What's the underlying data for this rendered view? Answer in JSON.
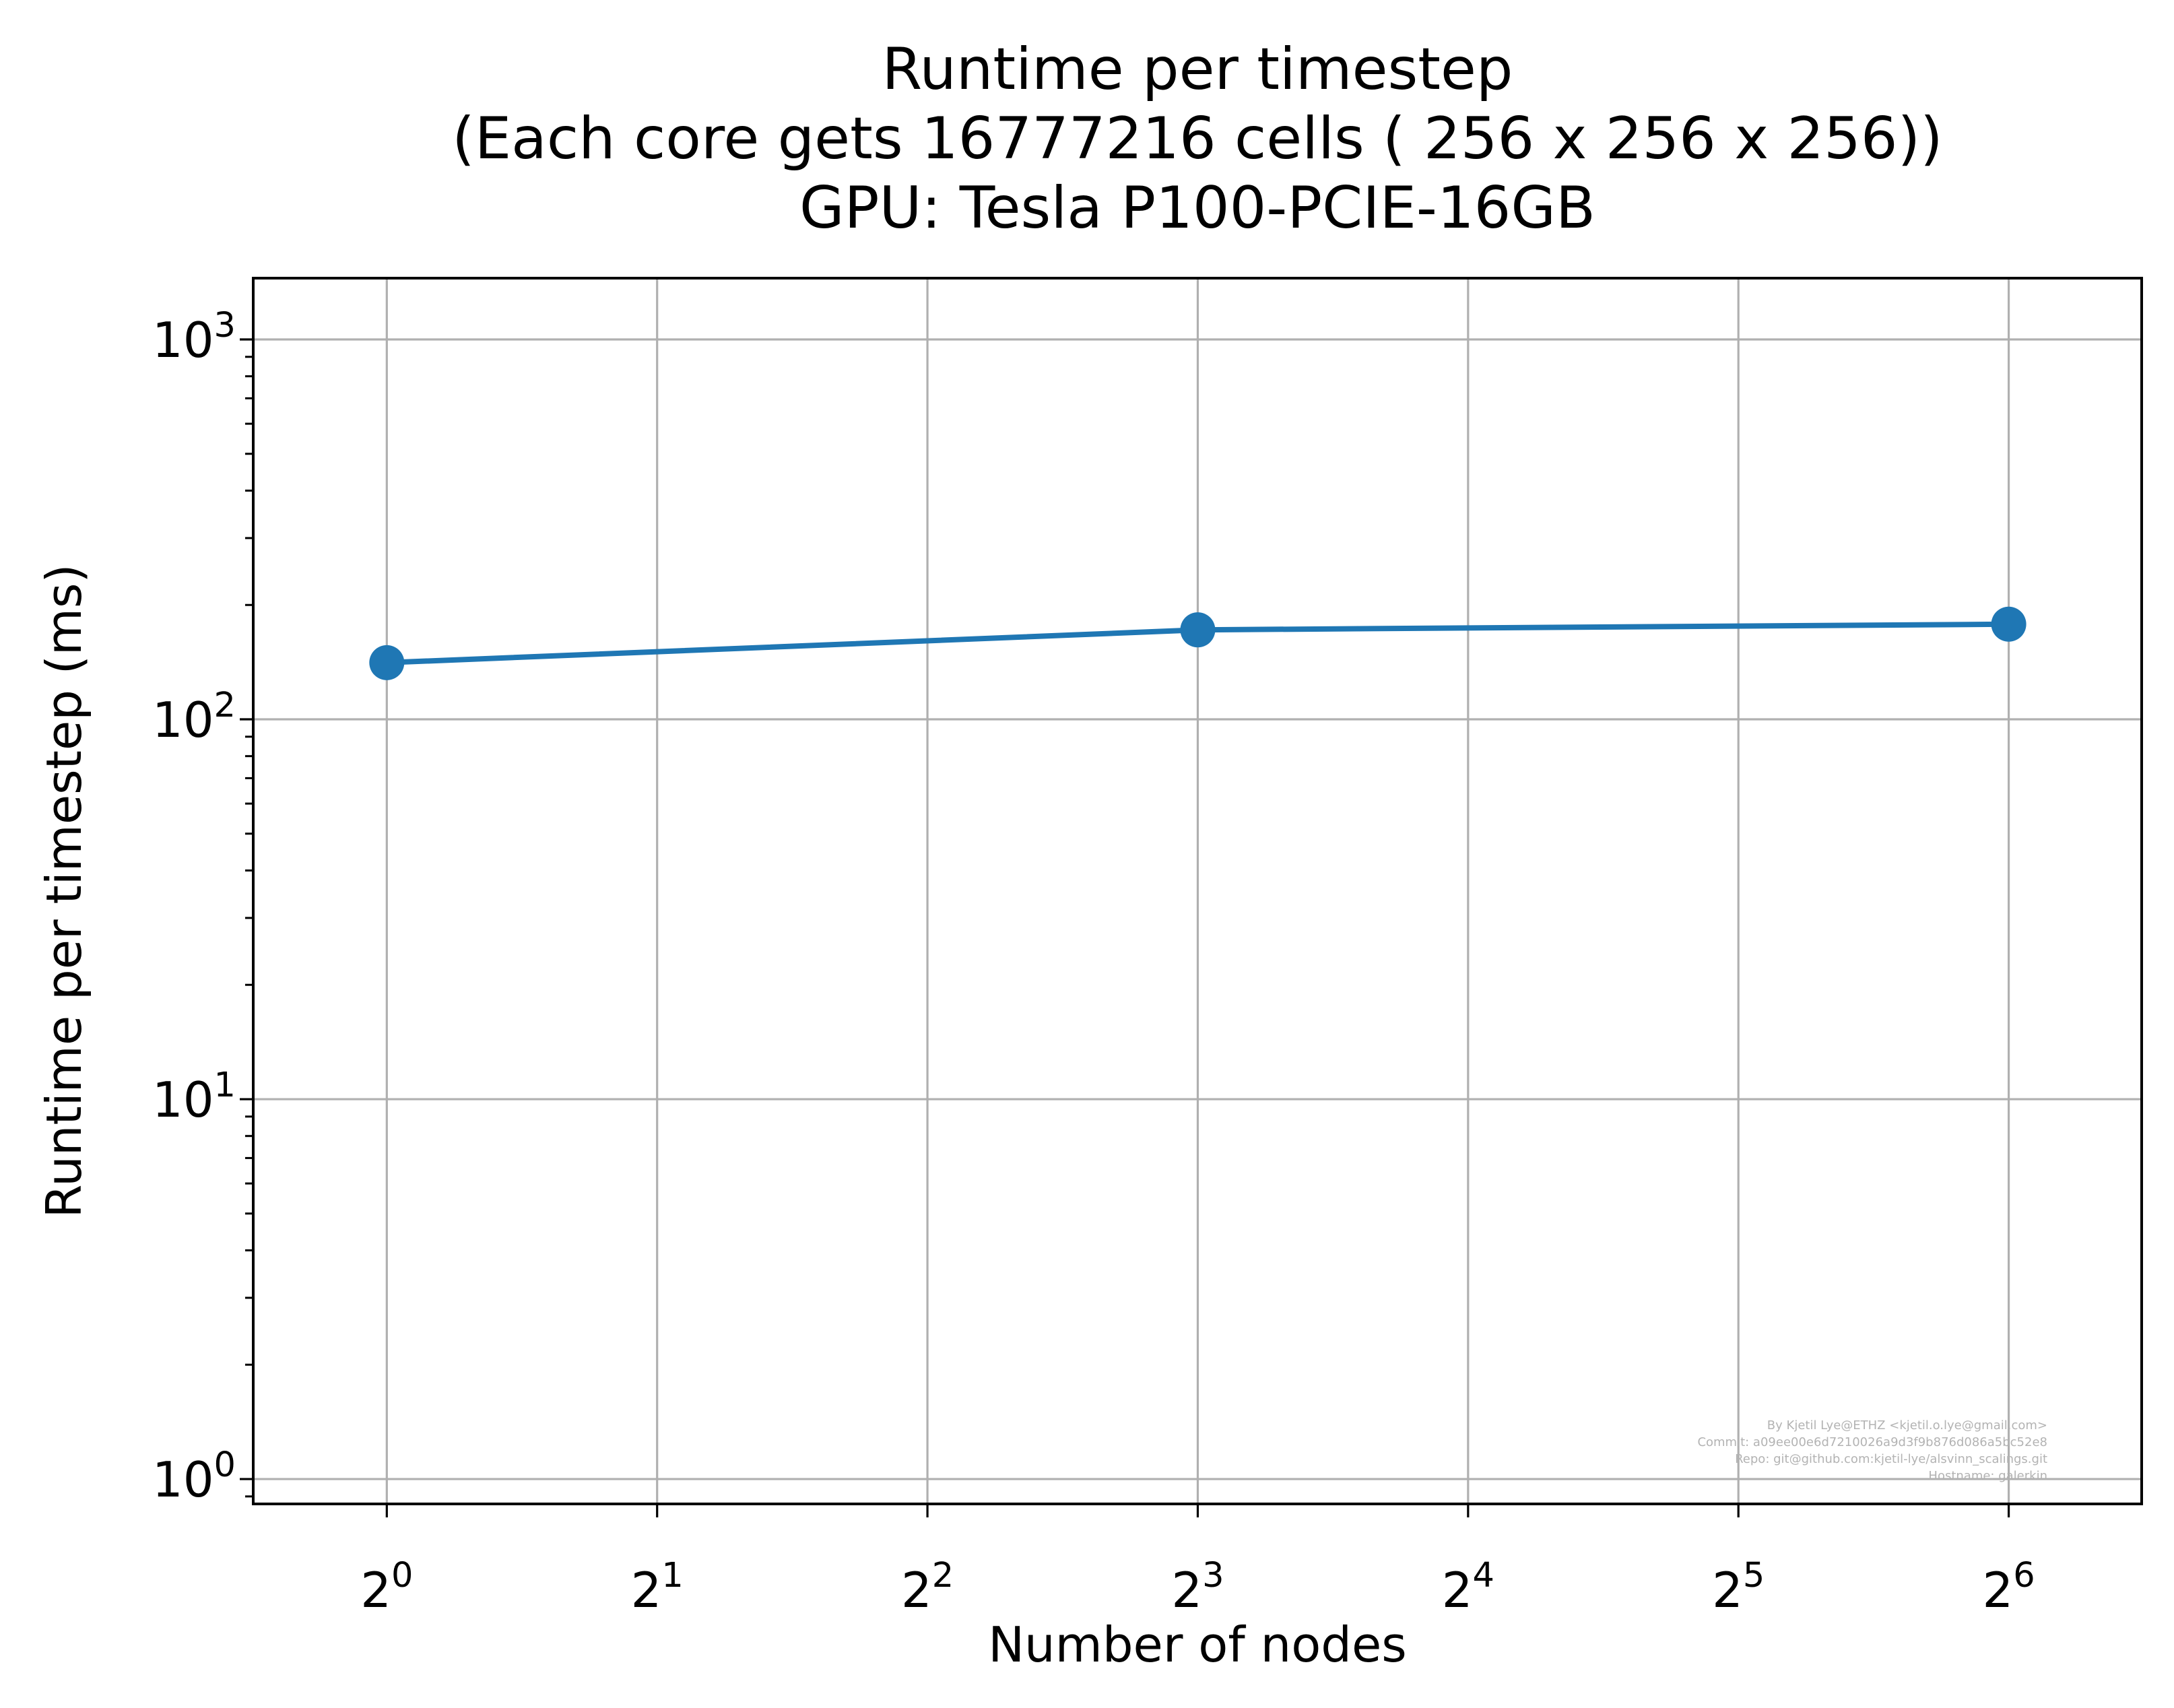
{
  "chart_data": {
    "type": "line",
    "title": [
      "Runtime per timestep",
      "(Each core gets 16777216 cells ( 256 x 256 x 256))",
      "GPU: Tesla P100-PCIE-16GB"
    ],
    "xlabel": "Number of nodes",
    "ylabel": "Runtime per timestep (ms)",
    "xscale": "log2",
    "yscale": "log10",
    "xlim": [
      0.71,
      90
    ],
    "ylim": [
      0.86,
      1450
    ],
    "grid": true,
    "x_ticks": [
      {
        "value": 1,
        "base": "2",
        "exp": "0"
      },
      {
        "value": 2,
        "base": "2",
        "exp": "1"
      },
      {
        "value": 4,
        "base": "2",
        "exp": "2"
      },
      {
        "value": 8,
        "base": "2",
        "exp": "3"
      },
      {
        "value": 16,
        "base": "2",
        "exp": "4"
      },
      {
        "value": 32,
        "base": "2",
        "exp": "5"
      },
      {
        "value": 64,
        "base": "2",
        "exp": "6"
      }
    ],
    "y_ticks": [
      {
        "value": 1,
        "base": "10",
        "exp": "0"
      },
      {
        "value": 10,
        "base": "10",
        "exp": "1"
      },
      {
        "value": 100,
        "base": "10",
        "exp": "2"
      },
      {
        "value": 1000,
        "base": "10",
        "exp": "3"
      }
    ],
    "series": [
      {
        "x": [
          1,
          8,
          64
        ],
        "y": [
          141,
          172,
          178
        ],
        "color": "#1f77b4",
        "marker": "circle"
      }
    ],
    "annotation": [
      "By Kjetil Lye@ETHZ <kjetil.o.lye@gmail.com>",
      "Commit: a09ee00e6d7210026a9d3f9b876d086a5bc52e8",
      "Repo: git@github.com:kjetil-lye/alsvinn_scalings.git",
      "Hostname: galerkin"
    ]
  }
}
